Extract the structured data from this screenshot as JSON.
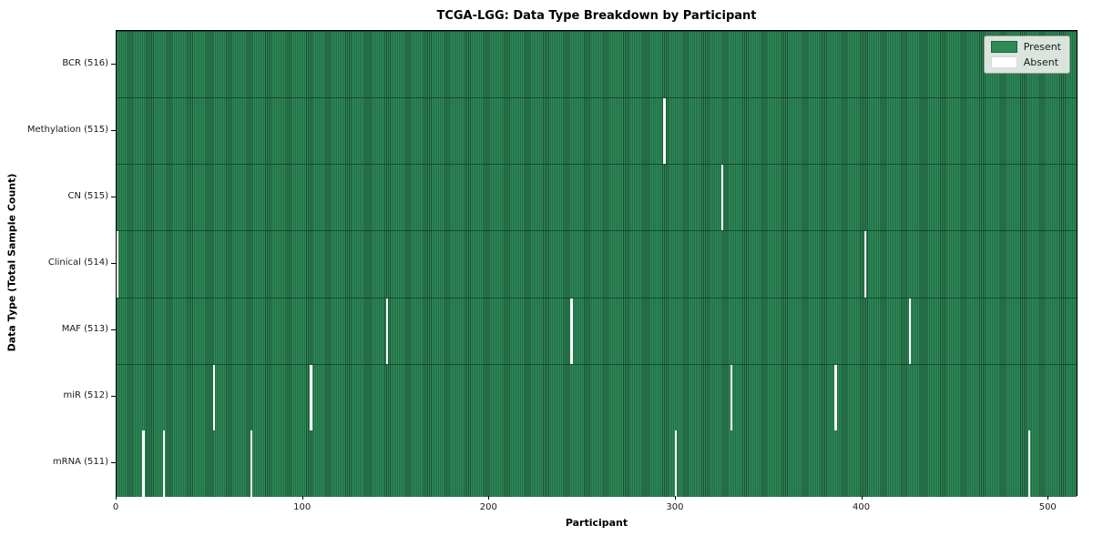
{
  "title": "TCGA-LGG: Data Type Breakdown by Participant",
  "chart_data": {
    "type": "heatmap",
    "title": "TCGA-LGG: Data Type Breakdown by Participant",
    "xlabel": "Participant",
    "ylabel": "Data Type (Total Sample Count)",
    "x_ticks": [
      0,
      100,
      200,
      300,
      400,
      500
    ],
    "x_range": [
      0,
      516
    ],
    "n_participants": 516,
    "grid": false,
    "legend_position": "upper right",
    "legend": [
      {
        "label": "Present",
        "color": "#2e8b57"
      },
      {
        "label": "Absent",
        "color": "#ffffff"
      }
    ],
    "colors": {
      "present": "#2e8b57",
      "present_edge": "#1b4f34",
      "absent": "#ffffff"
    },
    "rows": [
      {
        "label": "BCR (516)",
        "data_type": "BCR",
        "present_count": 516,
        "absent_participants": []
      },
      {
        "label": "Methylation (515)",
        "data_type": "Methylation",
        "present_count": 515,
        "absent_participants": [
          294
        ]
      },
      {
        "label": "CN (515)",
        "data_type": "CN",
        "present_count": 515,
        "absent_participants": [
          325
        ]
      },
      {
        "label": "Clinical (514)",
        "data_type": "Clinical",
        "present_count": 514,
        "absent_participants": [
          0,
          402
        ]
      },
      {
        "label": "MAF (513)",
        "data_type": "MAF",
        "present_count": 513,
        "absent_participants": [
          145,
          244,
          426
        ]
      },
      {
        "label": "miR (512)",
        "data_type": "miR",
        "present_count": 512,
        "absent_participants": [
          52,
          104,
          330,
          386
        ]
      },
      {
        "label": "mRNA (511)",
        "data_type": "mRNA",
        "present_count": 511,
        "absent_participants": [
          14,
          25,
          72,
          300,
          490
        ]
      }
    ]
  }
}
